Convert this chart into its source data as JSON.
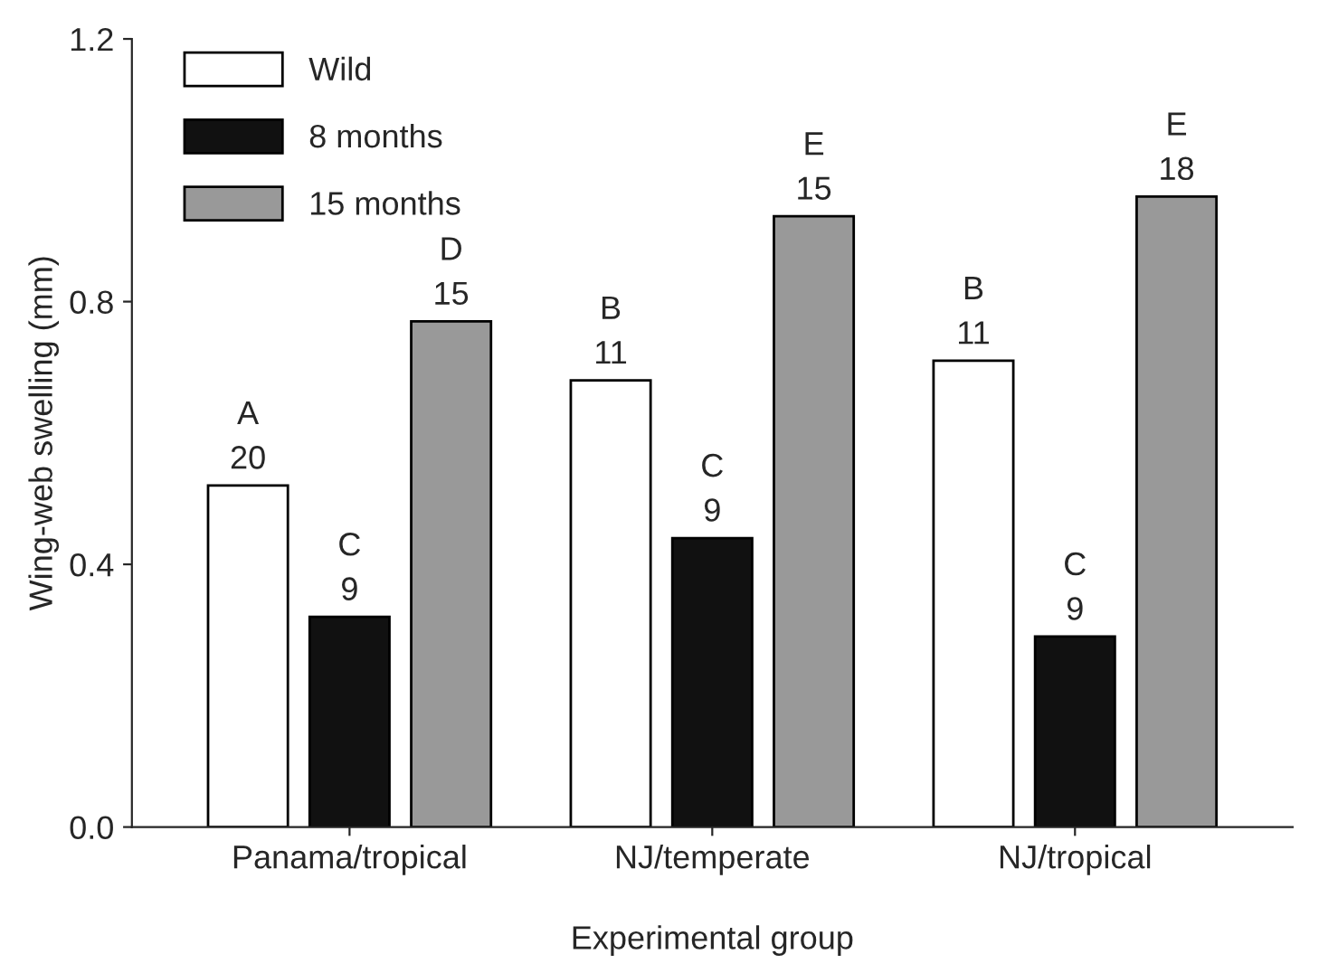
{
  "chart_data": {
    "type": "bar",
    "xlabel": "Experimental group",
    "ylabel": "Wing-web swelling (mm)",
    "categories": [
      "Panama/tropical",
      "NJ/temperate",
      "NJ/tropical"
    ],
    "series": [
      {
        "name": "Wild",
        "color": "#ffffff",
        "values": [
          0.52,
          0.68,
          0.71
        ],
        "value_labels": [
          "A\n20",
          "B\n11",
          "B\n11"
        ]
      },
      {
        "name": "8 months",
        "color": "#111111",
        "values": [
          0.32,
          0.44,
          0.29
        ],
        "value_labels": [
          "C\n9",
          "C\n9",
          "C\n9"
        ]
      },
      {
        "name": "15 months",
        "color": "#999999",
        "values": [
          0.77,
          0.93,
          0.96
        ],
        "value_labels": [
          "D\n15",
          "E\n15",
          "E\n18"
        ]
      }
    ],
    "ylim": [
      0,
      1.2
    ],
    "yticks": [
      {
        "value": 0,
        "label": "0.0"
      },
      {
        "value": 0.4,
        "label": "0.4"
      },
      {
        "value": 0.8,
        "label": "0.8"
      },
      {
        "value": 1.2,
        "label": "1.2"
      }
    ],
    "legend": "top left",
    "grid": false
  }
}
